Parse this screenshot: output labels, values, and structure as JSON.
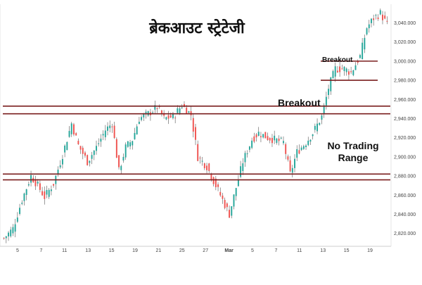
{
  "chart_data": {
    "type": "candlestick",
    "title": "ब्रेकआउट स्ट्रेटेजी",
    "xlabel": "",
    "ylabel": "",
    "x_ticks": [
      "5",
      "7",
      "11",
      "13",
      "15",
      "19",
      "21",
      "25",
      "27",
      "Mar",
      "5",
      "7",
      "11",
      "13",
      "15",
      "19"
    ],
    "y_ticks": [
      "2,820.000",
      "2,840.000",
      "2,860.000",
      "2,880.000",
      "2,900.000",
      "2,920.000",
      "2,940.000",
      "2,960.000",
      "2,980.000",
      "3,000.000",
      "3,020.000",
      "3,040.000"
    ],
    "ylim": [
      2808,
      3058
    ],
    "grid": false,
    "colors": {
      "up": "#26a69a",
      "down": "#ef5350",
      "level_line": "#7a1e1e",
      "wick": "#555555"
    },
    "levels": [
      {
        "name": "resistance",
        "values": [
          2953,
          2945
        ]
      },
      {
        "name": "support",
        "values": [
          2882,
          2876
        ]
      },
      {
        "name": "breakout-box",
        "values": [
          3000,
          2980
        ]
      }
    ],
    "annotations": [
      {
        "text": "Breakout",
        "near": "resistance"
      },
      {
        "text": "Breakout",
        "near": "top-right box"
      },
      {
        "text": "No Trading Range",
        "near": "right, between support and resistance"
      }
    ],
    "close_path": [
      [
        0,
        2815
      ],
      [
        4,
        2825
      ],
      [
        8,
        2855
      ],
      [
        12,
        2880
      ],
      [
        15,
        2870
      ],
      [
        18,
        2858
      ],
      [
        22,
        2872
      ],
      [
        26,
        2902
      ],
      [
        30,
        2935
      ],
      [
        33,
        2912
      ],
      [
        37,
        2895
      ],
      [
        41,
        2910
      ],
      [
        45,
        2928
      ],
      [
        48,
        2935
      ],
      [
        51,
        2885
      ],
      [
        54,
        2910
      ],
      [
        57,
        2918
      ],
      [
        60,
        2940
      ],
      [
        64,
        2945
      ],
      [
        68,
        2952
      ],
      [
        71,
        2940
      ],
      [
        75,
        2942
      ],
      [
        79,
        2954
      ],
      [
        83,
        2944
      ],
      [
        86,
        2900
      ],
      [
        90,
        2890
      ],
      [
        93,
        2875
      ],
      [
        96,
        2860
      ],
      [
        100,
        2840
      ],
      [
        103,
        2868
      ],
      [
        106,
        2895
      ],
      [
        110,
        2918
      ],
      [
        113,
        2925
      ],
      [
        117,
        2920
      ],
      [
        120,
        2918
      ],
      [
        124,
        2915
      ],
      [
        127,
        2882
      ],
      [
        130,
        2905
      ],
      [
        134,
        2915
      ],
      [
        137,
        2925
      ],
      [
        141,
        2942
      ],
      [
        144,
        2972
      ],
      [
        147,
        2992
      ],
      [
        151,
        2992
      ],
      [
        154,
        2988
      ],
      [
        158,
        3005
      ],
      [
        161,
        3035
      ],
      [
        164,
        3045
      ],
      [
        167,
        3050
      ],
      [
        170,
        3038
      ]
    ]
  },
  "annotations": {
    "breakout_main": "Breakout",
    "breakout_top": "Breakout",
    "no_trading_1": "No Trading",
    "no_trading_2": "Range"
  }
}
